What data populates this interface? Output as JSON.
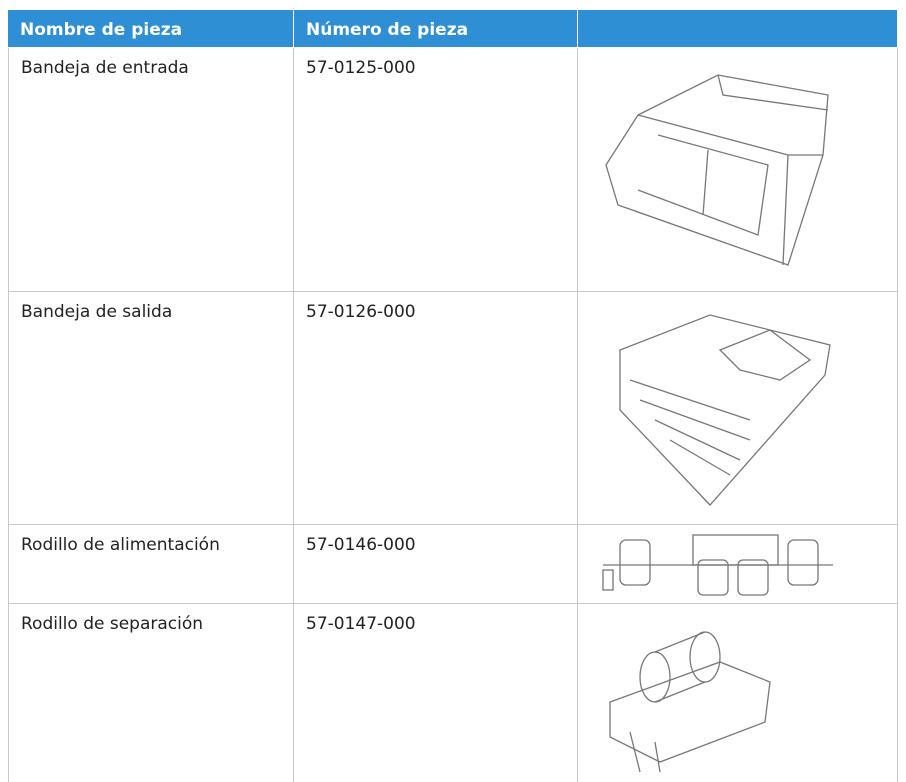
{
  "table": {
    "header": [
      "Nombre de pieza",
      "Número de pieza"
    ],
    "rows": [
      [
        "Bandeja de entrada",
        "57-0125-000"
      ],
      [
        "Bandeja de salida",
        "57-0126-000"
      ],
      [
        "Rodillo de alimentación",
        "57-0146-000"
      ],
      [
        "Rodillo de separación",
        "57-0147-000"
      ]
    ]
  }
}
